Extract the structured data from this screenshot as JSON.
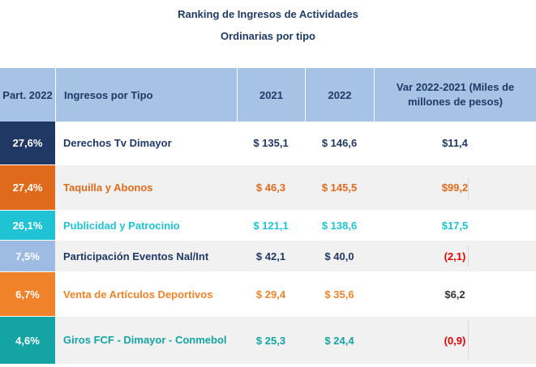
{
  "title": {
    "line1": "Ranking de Ingresos de Actividades",
    "line2": "Ordinarias por tipo"
  },
  "header": {
    "part": "Part. 2022",
    "type": "Ingresos por Tipo",
    "y2021": "2021",
    "y2022": "2022",
    "var": "Var 2022-2021 (Miles de millones de pesos)"
  },
  "rows": [
    {
      "part": "27,6%",
      "type": "Derechos Tv Dimayor",
      "y2021": "$ 135,1",
      "y2022": "$ 146,6",
      "var": "$11,4",
      "part_color": "#203864",
      "text_color": "#203864",
      "var_color": "#203864"
    },
    {
      "part": "27,4%",
      "type": "Taquilla y Abonos",
      "y2021": "$ 46,3",
      "y2022": "$ 145,5",
      "var": "$99,2",
      "part_color": "#e06a1b",
      "text_color": "#e06a1b",
      "var_color": "#e06a1b"
    },
    {
      "part": "26,1%",
      "type": "Publicidad y Patrocinio",
      "y2021": "$ 121,1",
      "y2022": "$ 138,6",
      "var": "$17,5",
      "part_color": "#1fc3d3",
      "text_color": "#1fc3d3",
      "var_color": "#1fc3d3"
    },
    {
      "part": "7,5%",
      "type": "Participación Eventos Nal/Int",
      "y2021": "$ 42,1",
      "y2022": "$ 40,0",
      "var": "(2,1)",
      "part_color": "#9dbbe3",
      "text_color": "#203864",
      "var_color": "#e00000"
    },
    {
      "part": "6,7%",
      "type": "Venta de Artículos Deportivos",
      "y2021": "$ 29,4",
      "y2022": "$ 35,6",
      "var": "$6,2",
      "part_color": "#f0832a",
      "text_color": "#f0832a",
      "var_color": "#333333"
    },
    {
      "part": "4,6%",
      "type": "Giros FCF - Dimayor - Conmebol",
      "y2021": "$ 25,3",
      "y2022": "$ 24,4",
      "var": "(0,9)",
      "part_color": "#14a4a4",
      "text_color": "#14a4a4",
      "var_color": "#e00000"
    }
  ]
}
